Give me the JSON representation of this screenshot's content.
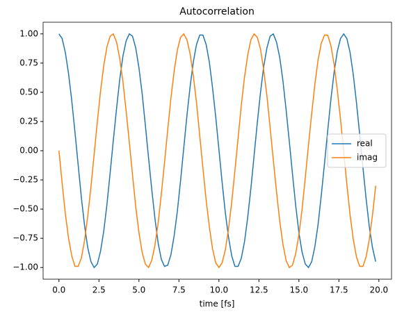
{
  "chart_data": {
    "type": "line",
    "title": "Autocorrelation",
    "x_label": "time [fs]",
    "x": [
      0,
      0.2,
      0.4,
      0.6,
      0.8,
      1.0,
      1.2,
      1.4,
      1.6,
      1.8,
      2.0,
      2.2,
      2.4,
      2.6,
      2.8,
      3.0,
      3.2,
      3.4,
      3.6,
      3.8,
      4.0,
      4.2,
      4.4,
      4.6,
      4.8,
      5.0,
      5.2,
      5.4,
      5.6,
      5.8,
      6.0,
      6.2,
      6.4,
      6.6,
      6.8,
      7.0,
      7.2,
      7.4,
      7.6,
      7.8,
      8.0,
      8.2,
      8.4,
      8.6,
      8.8,
      9.0,
      9.2,
      9.4,
      9.6,
      9.8,
      10.0,
      10.2,
      10.4,
      10.6,
      10.8,
      11.0,
      11.2,
      11.4,
      11.6,
      11.8,
      12.0,
      12.2,
      12.4,
      12.6,
      12.8,
      13.0,
      13.2,
      13.4,
      13.6,
      13.8,
      14.0,
      14.2,
      14.4,
      14.6,
      14.8,
      15.0,
      15.2,
      15.4,
      15.6,
      15.8,
      16.0,
      16.2,
      16.4,
      16.6,
      16.8,
      17.0,
      17.2,
      17.4,
      17.6,
      17.8,
      18.0,
      18.2,
      18.4,
      18.6,
      18.8,
      19.0,
      19.2,
      19.4,
      19.6,
      19.8
    ],
    "series": [
      {
        "name": "real",
        "color": "#1f77b4",
        "values": [
          1,
          0.96,
          0.84,
          0.66,
          0.43,
          0.16,
          -0.12,
          -0.4,
          -0.64,
          -0.83,
          -0.95,
          -1.0,
          -0.97,
          -0.86,
          -0.69,
          -0.46,
          -0.19,
          0.09,
          0.36,
          0.61,
          0.81,
          0.94,
          1.0,
          0.98,
          0.88,
          0.71,
          0.49,
          0.22,
          -0.06,
          -0.33,
          -0.58,
          -0.79,
          -0.93,
          -0.99,
          -0.98,
          -0.89,
          -0.73,
          -0.52,
          -0.26,
          0.02,
          0.3,
          0.55,
          0.76,
          0.91,
          0.99,
          0.99,
          0.91,
          0.76,
          0.54,
          0.29,
          0.01,
          -0.27,
          -0.53,
          -0.74,
          -0.9,
          -0.99,
          -0.99,
          -0.92,
          -0.78,
          -0.57,
          -0.32,
          -0.04,
          0.24,
          0.5,
          0.72,
          0.88,
          0.98,
          1.0,
          0.93,
          0.8,
          0.6,
          0.35,
          0.08,
          -0.2,
          -0.47,
          -0.7,
          -0.87,
          -0.97,
          -1.0,
          -0.95,
          -0.82,
          -0.63,
          -0.38,
          -0.11,
          0.17,
          0.44,
          0.67,
          0.85,
          0.96,
          1.0,
          0.96,
          0.84,
          0.65,
          0.41,
          0.14,
          -0.14,
          -0.41,
          -0.65,
          -0.83,
          -0.95
        ]
      },
      {
        "name": "imag",
        "color": "#ff7f0e",
        "values": [
          0,
          -0.28,
          -0.54,
          -0.75,
          -0.9,
          -0.99,
          -0.99,
          -0.92,
          -0.77,
          -0.56,
          -0.31,
          -0.03,
          0.25,
          0.51,
          0.73,
          0.89,
          0.98,
          1.0,
          0.93,
          0.79,
          0.59,
          0.34,
          0.07,
          -0.21,
          -0.48,
          -0.7,
          -0.87,
          -0.97,
          -1.0,
          -0.94,
          -0.81,
          -0.62,
          -0.37,
          -0.1,
          0.18,
          0.45,
          0.68,
          0.86,
          0.97,
          1.0,
          0.95,
          0.83,
          0.64,
          0.41,
          0.13,
          -0.15,
          -0.42,
          -0.65,
          -0.84,
          -0.96,
          -1.0,
          -0.96,
          -0.85,
          -0.67,
          -0.44,
          -0.17,
          0.11,
          0.39,
          0.63,
          0.82,
          0.95,
          1.0,
          0.97,
          0.87,
          0.69,
          0.47,
          0.2,
          -0.08,
          -0.35,
          -0.6,
          -0.8,
          -0.94,
          -1.0,
          -0.98,
          -0.88,
          -0.72,
          -0.5,
          -0.23,
          0.05,
          0.32,
          0.57,
          0.78,
          0.92,
          0.99,
          0.99,
          0.9,
          0.74,
          0.52,
          0.27,
          -0.01,
          -0.29,
          -0.55,
          -0.76,
          -0.91,
          -0.99,
          -0.99,
          -0.91,
          -0.76,
          -0.55,
          -0.3
        ]
      }
    ],
    "xlim": [
      -0.99,
      20.79
    ],
    "xticks": [
      {
        "value": 0,
        "label": "0.0"
      },
      2.5,
      {
        "value": 5,
        "label": "5.0"
      },
      7.5,
      {
        "value": 10,
        "label": "10.0"
      },
      12.5,
      {
        "value": 15,
        "label": "15.0"
      },
      17.5,
      {
        "value": 20,
        "label": "20.0"
      }
    ],
    "ylim": [
      -1.1,
      1.1
    ],
    "yticks": [
      {
        "value": -1,
        "label": "−1.00"
      },
      {
        "value": -0.75,
        "label": "−0.75"
      },
      {
        "value": -0.5,
        "label": "−0.50"
      },
      {
        "value": -0.25,
        "label": "−0.25"
      },
      {
        "value": 0,
        "label": "0.00"
      },
      {
        "value": 0.25,
        "label": "0.25"
      },
      {
        "value": 0.5,
        "label": "0.50"
      },
      {
        "value": 0.75,
        "label": "0.75"
      },
      {
        "value": 1,
        "label": "1.00"
      }
    ],
    "legend": "center right"
  }
}
